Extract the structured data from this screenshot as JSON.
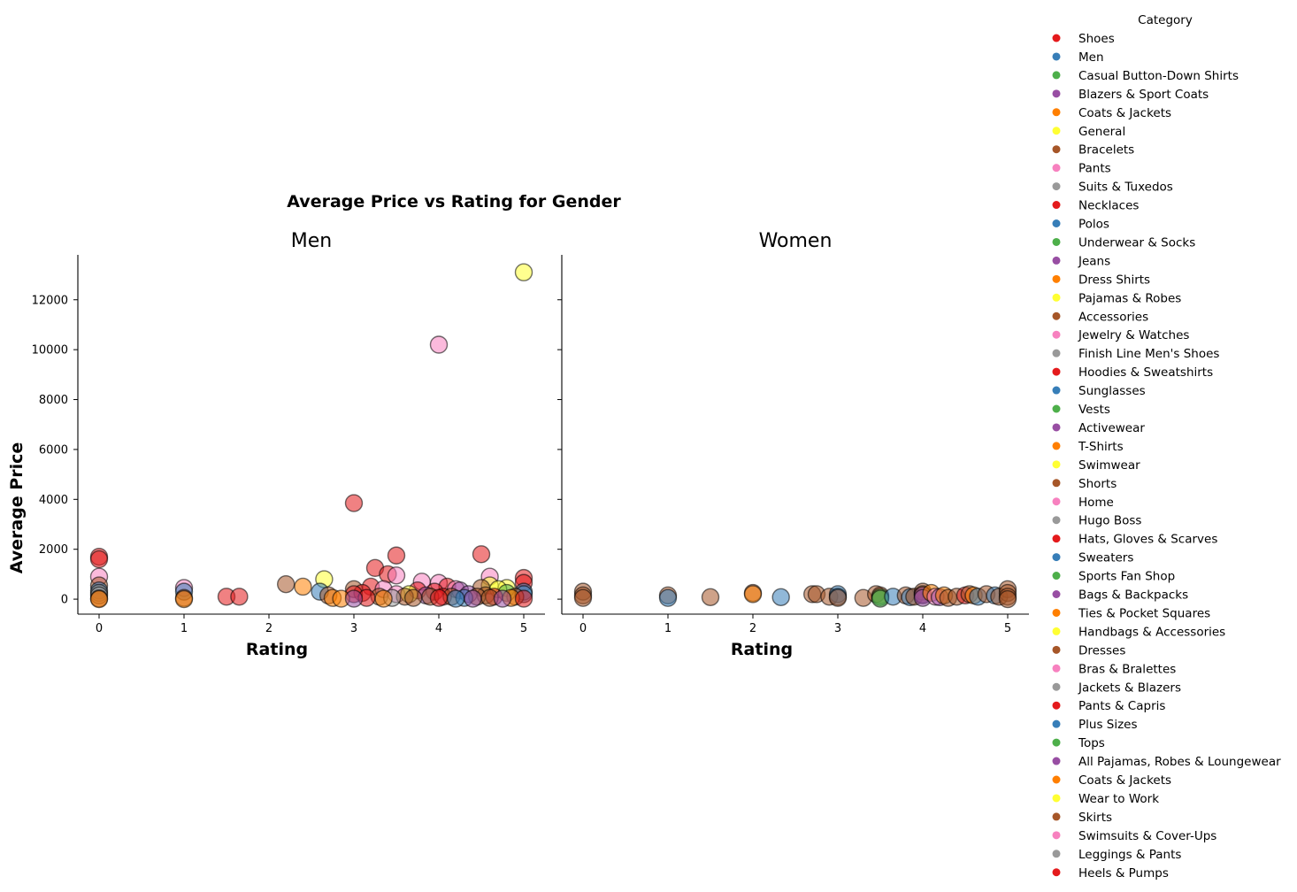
{
  "chart_data": {
    "type": "scatter",
    "title": "Average Price vs Rating for Gender",
    "xlabel": "Rating",
    "ylabel": "Average Price",
    "xlim": [
      -0.25,
      5.25
    ],
    "ylim": [
      -600,
      13800
    ],
    "x_ticks": [
      0,
      1,
      2,
      3,
      4,
      5
    ],
    "y_ticks": [
      0,
      2000,
      4000,
      6000,
      8000,
      10000,
      12000
    ],
    "grid": false,
    "legend": {
      "title": "Category",
      "placement": "right, outside",
      "entries": [
        {
          "label": "Shoes",
          "color": "#e41a1c"
        },
        {
          "label": "Men",
          "color": "#377eb8"
        },
        {
          "label": "Casual Button-Down Shirts",
          "color": "#4daf4a"
        },
        {
          "label": "Blazers & Sport Coats",
          "color": "#984ea3"
        },
        {
          "label": "Coats & Jackets",
          "color": "#ff7f00"
        },
        {
          "label": "General",
          "color": "#ffff33"
        },
        {
          "label": "Bracelets",
          "color": "#a65628"
        },
        {
          "label": "Pants",
          "color": "#f781bf"
        },
        {
          "label": "Suits & Tuxedos",
          "color": "#999999"
        },
        {
          "label": "Necklaces",
          "color": "#e41a1c"
        },
        {
          "label": "Polos",
          "color": "#377eb8"
        },
        {
          "label": "Underwear & Socks",
          "color": "#4daf4a"
        },
        {
          "label": "Jeans",
          "color": "#984ea3"
        },
        {
          "label": "Dress Shirts",
          "color": "#ff7f00"
        },
        {
          "label": "Pajamas & Robes",
          "color": "#ffff33"
        },
        {
          "label": "Accessories",
          "color": "#a65628"
        },
        {
          "label": "Jewelry & Watches",
          "color": "#f781bf"
        },
        {
          "label": "Finish Line Men's Shoes",
          "color": "#999999"
        },
        {
          "label": "Hoodies & Sweatshirts",
          "color": "#e41a1c"
        },
        {
          "label": "Sunglasses",
          "color": "#377eb8"
        },
        {
          "label": "Vests",
          "color": "#4daf4a"
        },
        {
          "label": "Activewear",
          "color": "#984ea3"
        },
        {
          "label": "T-Shirts",
          "color": "#ff7f00"
        },
        {
          "label": "Swimwear",
          "color": "#ffff33"
        },
        {
          "label": "Shorts",
          "color": "#a65628"
        },
        {
          "label": "Home",
          "color": "#f781bf"
        },
        {
          "label": "Hugo Boss",
          "color": "#999999"
        },
        {
          "label": "Hats, Gloves & Scarves",
          "color": "#e41a1c"
        },
        {
          "label": "Sweaters",
          "color": "#377eb8"
        },
        {
          "label": "Sports Fan Shop",
          "color": "#4daf4a"
        },
        {
          "label": "Bags & Backpacks",
          "color": "#984ea3"
        },
        {
          "label": "Ties & Pocket Squares",
          "color": "#ff7f00"
        },
        {
          "label": "Handbags & Accessories",
          "color": "#ffff33"
        },
        {
          "label": "Dresses",
          "color": "#a65628"
        },
        {
          "label": "Bras & Bralettes",
          "color": "#f781bf"
        },
        {
          "label": "Jackets & Blazers",
          "color": "#999999"
        },
        {
          "label": "Pants & Capris",
          "color": "#e41a1c"
        },
        {
          "label": "Plus Sizes",
          "color": "#377eb8"
        },
        {
          "label": "Tops",
          "color": "#4daf4a"
        },
        {
          "label": "All Pajamas, Robes & Loungewear",
          "color": "#984ea3"
        },
        {
          "label": "Coats & Jackets",
          "color": "#ff7f00"
        },
        {
          "label": "Wear to Work",
          "color": "#ffff33"
        },
        {
          "label": "Skirts",
          "color": "#a65628"
        },
        {
          "label": "Swimsuits & Cover-Ups",
          "color": "#f781bf"
        },
        {
          "label": "Leggings & Pants",
          "color": "#999999"
        },
        {
          "label": "Heels & Pumps",
          "color": "#e41a1c"
        }
      ]
    },
    "panels": [
      {
        "title": "Men",
        "points": [
          {
            "x": 5.0,
            "y": 13100,
            "color": "#ffff33"
          },
          {
            "x": 4.0,
            "y": 10200,
            "color": "#f781bf"
          },
          {
            "x": 3.0,
            "y": 3850,
            "color": "#e41a1c"
          },
          {
            "x": 4.5,
            "y": 1800,
            "color": "#e41a1c"
          },
          {
            "x": 3.5,
            "y": 1750,
            "color": "#e41a1c"
          },
          {
            "x": 0.0,
            "y": 1700,
            "color": "#e41a1c"
          },
          {
            "x": 0.0,
            "y": 1600,
            "color": "#e41a1c"
          },
          {
            "x": 3.25,
            "y": 1250,
            "color": "#e41a1c"
          },
          {
            "x": 3.4,
            "y": 1000,
            "color": "#e41a1c"
          },
          {
            "x": 3.5,
            "y": 950,
            "color": "#f781bf"
          },
          {
            "x": 0.0,
            "y": 900,
            "color": "#f781bf"
          },
          {
            "x": 4.6,
            "y": 900,
            "color": "#f781bf"
          },
          {
            "x": 5.0,
            "y": 850,
            "color": "#e41a1c"
          },
          {
            "x": 2.65,
            "y": 800,
            "color": "#ffff33"
          },
          {
            "x": 3.8,
            "y": 700,
            "color": "#f781bf"
          },
          {
            "x": 4.0,
            "y": 650,
            "color": "#f781bf"
          },
          {
            "x": 5.0,
            "y": 650,
            "color": "#e41a1c"
          },
          {
            "x": 2.2,
            "y": 600,
            "color": "#a65628"
          },
          {
            "x": 0.0,
            "y": 550,
            "color": "#a65628"
          },
          {
            "x": 4.6,
            "y": 550,
            "color": "#ffff33"
          },
          {
            "x": 3.2,
            "y": 500,
            "color": "#e41a1c"
          },
          {
            "x": 2.4,
            "y": 500,
            "color": "#ff7f00"
          },
          {
            "x": 4.1,
            "y": 500,
            "color": "#e41a1c"
          },
          {
            "x": 4.8,
            "y": 450,
            "color": "#ffff33"
          },
          {
            "x": 1.0,
            "y": 450,
            "color": "#f781bf"
          },
          {
            "x": 4.5,
            "y": 450,
            "color": "#a65628"
          },
          {
            "x": 4.2,
            "y": 400,
            "color": "#f781bf"
          },
          {
            "x": 3.0,
            "y": 400,
            "color": "#a65628"
          },
          {
            "x": 4.7,
            "y": 400,
            "color": "#ffff33"
          },
          {
            "x": 3.35,
            "y": 400,
            "color": "#f781bf"
          },
          {
            "x": 0.0,
            "y": 350,
            "color": "#377eb8"
          },
          {
            "x": 3.75,
            "y": 350,
            "color": "#e41a1c"
          },
          {
            "x": 4.25,
            "y": 350,
            "color": "#984ea3"
          },
          {
            "x": 3.95,
            "y": 300,
            "color": "#e41a1c"
          },
          {
            "x": 2.6,
            "y": 300,
            "color": "#377eb8"
          },
          {
            "x": 1.0,
            "y": 300,
            "color": "#377eb8"
          },
          {
            "x": 0.0,
            "y": 250,
            "color": "#999999"
          },
          {
            "x": 5.0,
            "y": 300,
            "color": "#377eb8"
          },
          {
            "x": 4.8,
            "y": 250,
            "color": "#4daf4a"
          },
          {
            "x": 3.1,
            "y": 250,
            "color": "#e41a1c"
          },
          {
            "x": 3.5,
            "y": 200,
            "color": "#f781bf"
          },
          {
            "x": 3.65,
            "y": 200,
            "color": "#ffff33"
          },
          {
            "x": 5.0,
            "y": 200,
            "color": "#377eb8"
          },
          {
            "x": 4.35,
            "y": 200,
            "color": "#984ea3"
          },
          {
            "x": 3.0,
            "y": 200,
            "color": "#e41a1c"
          },
          {
            "x": 0.0,
            "y": 150,
            "color": "#999999"
          },
          {
            "x": 2.7,
            "y": 150,
            "color": "#a65628"
          },
          {
            "x": 3.85,
            "y": 150,
            "color": "#984ea3"
          },
          {
            "x": 4.55,
            "y": 150,
            "color": "#a65628"
          },
          {
            "x": 1.5,
            "y": 100,
            "color": "#e41a1c"
          },
          {
            "x": 1.65,
            "y": 100,
            "color": "#e41a1c"
          },
          {
            "x": 3.3,
            "y": 100,
            "color": "#a65628"
          },
          {
            "x": 3.6,
            "y": 100,
            "color": "#a65628"
          },
          {
            "x": 3.9,
            "y": 100,
            "color": "#a65628"
          },
          {
            "x": 4.05,
            "y": 100,
            "color": "#e41a1c"
          },
          {
            "x": 4.15,
            "y": 100,
            "color": "#a65628"
          },
          {
            "x": 4.45,
            "y": 100,
            "color": "#a65628"
          },
          {
            "x": 4.65,
            "y": 100,
            "color": "#e41a1c"
          },
          {
            "x": 4.9,
            "y": 100,
            "color": "#a65628"
          },
          {
            "x": 1.0,
            "y": 50,
            "color": "#a65628"
          },
          {
            "x": 2.75,
            "y": 50,
            "color": "#ff7f00"
          },
          {
            "x": 3.15,
            "y": 50,
            "color": "#e41a1c"
          },
          {
            "x": 3.45,
            "y": 50,
            "color": "#999999"
          },
          {
            "x": 3.7,
            "y": 50,
            "color": "#a65628"
          },
          {
            "x": 4.0,
            "y": 50,
            "color": "#e41a1c"
          },
          {
            "x": 4.3,
            "y": 50,
            "color": "#377eb8"
          },
          {
            "x": 4.6,
            "y": 50,
            "color": "#a65628"
          },
          {
            "x": 4.85,
            "y": 50,
            "color": "#ff7f00"
          },
          {
            "x": 0.0,
            "y": 30,
            "color": "#a65628"
          },
          {
            "x": 2.85,
            "y": 20,
            "color": "#ff7f00"
          },
          {
            "x": 3.0,
            "y": 20,
            "color": "#984ea3"
          },
          {
            "x": 3.35,
            "y": 20,
            "color": "#ff7f00"
          },
          {
            "x": 4.2,
            "y": 20,
            "color": "#377eb8"
          },
          {
            "x": 4.4,
            "y": 20,
            "color": "#984ea3"
          },
          {
            "x": 4.75,
            "y": 20,
            "color": "#984ea3"
          },
          {
            "x": 5.0,
            "y": 20,
            "color": "#e41a1c"
          },
          {
            "x": 0.0,
            "y": 0,
            "color": "#ff7f00"
          },
          {
            "x": 1.0,
            "y": 0,
            "color": "#ff7f00"
          }
        ]
      },
      {
        "title": "Women",
        "points": [
          {
            "x": 0.0,
            "y": 300,
            "color": "#a65628"
          },
          {
            "x": 0.0,
            "y": 150,
            "color": "#a65628"
          },
          {
            "x": 0.0,
            "y": 50,
            "color": "#a65628"
          },
          {
            "x": 1.0,
            "y": 150,
            "color": "#a65628"
          },
          {
            "x": 1.0,
            "y": 50,
            "color": "#377eb8"
          },
          {
            "x": 1.5,
            "y": 80,
            "color": "#a65628"
          },
          {
            "x": 2.0,
            "y": 250,
            "color": "#a65628"
          },
          {
            "x": 2.0,
            "y": 200,
            "color": "#ff7f00"
          },
          {
            "x": 2.33,
            "y": 80,
            "color": "#377eb8"
          },
          {
            "x": 2.7,
            "y": 200,
            "color": "#a65628"
          },
          {
            "x": 2.75,
            "y": 200,
            "color": "#a65628"
          },
          {
            "x": 2.9,
            "y": 100,
            "color": "#a65628"
          },
          {
            "x": 3.0,
            "y": 200,
            "color": "#377eb8"
          },
          {
            "x": 3.0,
            "y": 100,
            "color": "#377eb8"
          },
          {
            "x": 3.0,
            "y": 50,
            "color": "#a65628"
          },
          {
            "x": 3.3,
            "y": 50,
            "color": "#a65628"
          },
          {
            "x": 3.45,
            "y": 200,
            "color": "#a65628"
          },
          {
            "x": 3.5,
            "y": 150,
            "color": "#a65628"
          },
          {
            "x": 3.5,
            "y": 80,
            "color": "#4daf4a"
          },
          {
            "x": 3.5,
            "y": 20,
            "color": "#4daf4a"
          },
          {
            "x": 3.65,
            "y": 100,
            "color": "#377eb8"
          },
          {
            "x": 3.8,
            "y": 150,
            "color": "#a65628"
          },
          {
            "x": 3.85,
            "y": 80,
            "color": "#377eb8"
          },
          {
            "x": 3.9,
            "y": 100,
            "color": "#a65628"
          },
          {
            "x": 4.0,
            "y": 300,
            "color": "#a65628"
          },
          {
            "x": 4.0,
            "y": 200,
            "color": "#a65628"
          },
          {
            "x": 4.0,
            "y": 150,
            "color": "#984ea3"
          },
          {
            "x": 4.0,
            "y": 50,
            "color": "#984ea3"
          },
          {
            "x": 4.1,
            "y": 250,
            "color": "#ff7f00"
          },
          {
            "x": 4.15,
            "y": 100,
            "color": "#f781bf"
          },
          {
            "x": 4.2,
            "y": 80,
            "color": "#984ea3"
          },
          {
            "x": 4.25,
            "y": 150,
            "color": "#ff7f00"
          },
          {
            "x": 4.3,
            "y": 50,
            "color": "#a65628"
          },
          {
            "x": 4.4,
            "y": 100,
            "color": "#a65628"
          },
          {
            "x": 4.5,
            "y": 150,
            "color": "#e41a1c"
          },
          {
            "x": 4.55,
            "y": 200,
            "color": "#a65628"
          },
          {
            "x": 4.6,
            "y": 150,
            "color": "#ff7f00"
          },
          {
            "x": 4.65,
            "y": 100,
            "color": "#377eb8"
          },
          {
            "x": 4.75,
            "y": 200,
            "color": "#a65628"
          },
          {
            "x": 4.85,
            "y": 150,
            "color": "#377eb8"
          },
          {
            "x": 4.9,
            "y": 100,
            "color": "#a65628"
          },
          {
            "x": 5.0,
            "y": 400,
            "color": "#a65628"
          },
          {
            "x": 5.0,
            "y": 250,
            "color": "#a65628"
          },
          {
            "x": 5.0,
            "y": 100,
            "color": "#a65628"
          },
          {
            "x": 5.0,
            "y": 0,
            "color": "#a65628"
          }
        ]
      }
    ]
  }
}
